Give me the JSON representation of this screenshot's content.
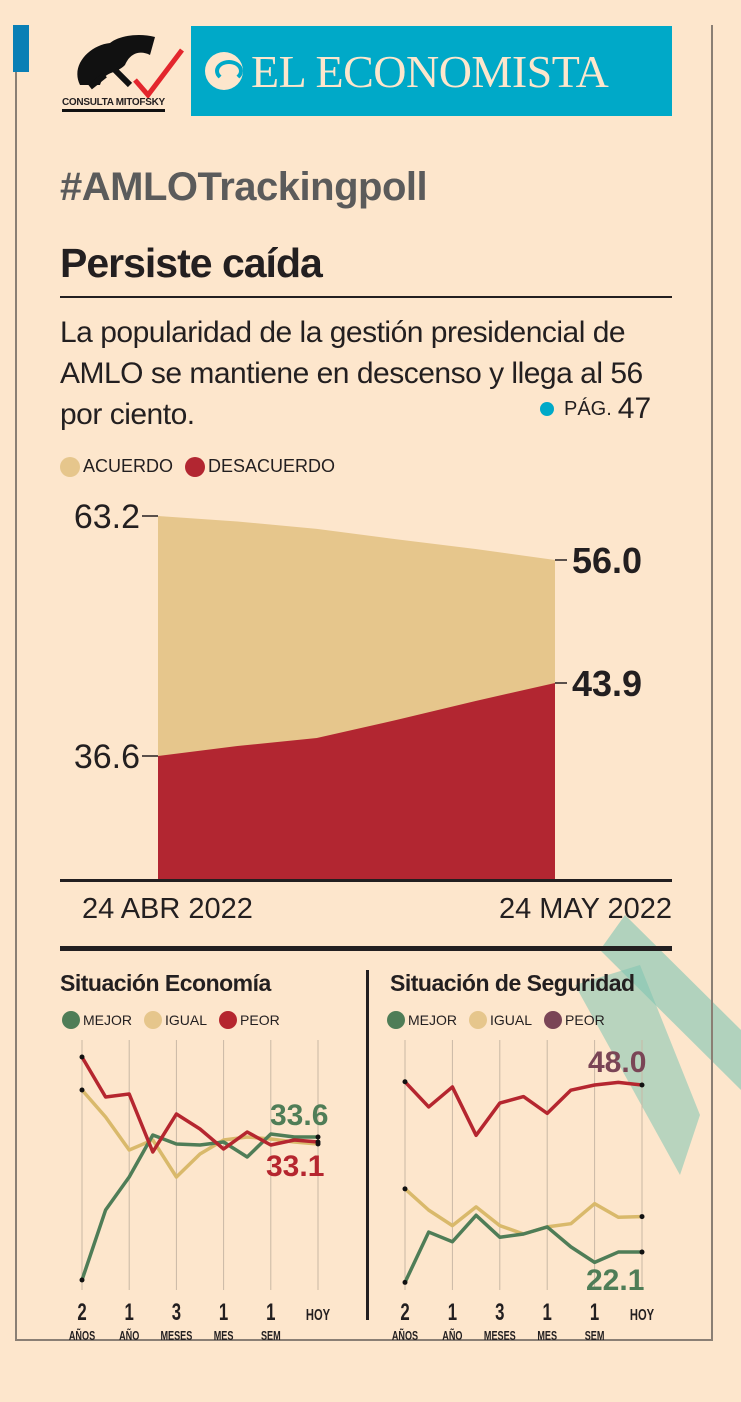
{
  "header": {
    "logo_left": "CONSULTA MITOFSKY",
    "brand": "EL ECONOMISTA",
    "hashtag": "#AMLOTrackingpoll",
    "title": "Persiste caída",
    "description": "La popularidad de la gestión presidencial de AMLO se mantiene en descenso y llega al 56 por ciento.",
    "page_ref_label": "PÁG.",
    "page_ref_num": "47"
  },
  "colors": {
    "acuerdo": "#e6c68c",
    "desacuerdo": "#b22631",
    "mejor": "#4f7d57",
    "igual": "#d9b96b",
    "peor": "#b5262f",
    "peor_seguridad": "#7a4556",
    "brand": "#00a9c8",
    "accent_stripe": "#7fc4b2"
  },
  "chart_data": [
    {
      "type": "area",
      "legend": [
        "ACUERDO",
        "DESACUERDO"
      ],
      "legend_placement": "top-left",
      "x_labels": [
        "24 ABR 2022",
        "24 MAY 2022"
      ],
      "series": [
        {
          "name": "ACUERDO",
          "values": [
            63.2,
            62.3,
            61.1,
            59.4,
            57.8,
            56.0
          ]
        },
        {
          "name": "DESACUERDO",
          "values": [
            36.6,
            37.6,
            38.4,
            40.2,
            42.1,
            43.9
          ]
        }
      ],
      "labels": {
        "start_acuerdo": "63.2",
        "start_desacuerdo": "36.6",
        "end_acuerdo": "56.0",
        "end_desacuerdo": "43.9"
      }
    },
    {
      "type": "line",
      "title": "Situación Economía",
      "legend": [
        "MEJOR",
        "IGUAL",
        "PEOR"
      ],
      "x_ticks": [
        {
          "n": "2",
          "u": "AÑOS"
        },
        {
          "n": "1",
          "u": "AÑO"
        },
        {
          "n": "3",
          "u": "MESES"
        },
        {
          "n": "1",
          "u": "MES"
        },
        {
          "n": "1",
          "u": "SEM"
        },
        {
          "n": "HOY",
          "u": ""
        }
      ],
      "series": [
        {
          "name": "MEJOR",
          "values": [
            19.3,
            26.3,
            29.6,
            33.8,
            32.9,
            32.8,
            33.1,
            31.6,
            33.9,
            33.6,
            33.6
          ]
        },
        {
          "name": "IGUAL",
          "values": [
            38.3,
            35.6,
            32.3,
            33.3,
            29.6,
            31.9,
            33.3,
            33.6,
            33.4,
            33.1,
            32.9
          ]
        },
        {
          "name": "PEOR",
          "values": [
            41.6,
            37.6,
            37.9,
            32.1,
            35.9,
            34.4,
            32.4,
            34.1,
            32.8,
            33.3,
            33.1
          ]
        }
      ],
      "end_labels": {
        "mejor": "33.6",
        "peor": "33.1"
      }
    },
    {
      "type": "line",
      "title": "Situación de Seguridad",
      "legend": [
        "MEJOR",
        "IGUAL",
        "PEOR"
      ],
      "x_ticks": [
        {
          "n": "2",
          "u": "AÑOS"
        },
        {
          "n": "1",
          "u": "AÑO"
        },
        {
          "n": "3",
          "u": "MESES"
        },
        {
          "n": "1",
          "u": "MES"
        },
        {
          "n": "1",
          "u": "SEM"
        },
        {
          "n": "HOY",
          "u": ""
        }
      ],
      "series": [
        {
          "name": "MEJOR",
          "values": [
            17.4,
            25.2,
            23.7,
            27.8,
            24.4,
            24.9,
            26.0,
            22.9,
            20.5,
            22.1,
            22.1
          ]
        },
        {
          "name": "IGUAL",
          "values": [
            31.9,
            28.6,
            26.2,
            29.1,
            26.2,
            24.9,
            26.0,
            26.5,
            29.6,
            27.5,
            27.6
          ]
        },
        {
          "name": "PEOR",
          "values": [
            48.5,
            44.6,
            47.7,
            40.2,
            45.2,
            46.2,
            43.6,
            47.2,
            48.0,
            48.4,
            48.0
          ]
        }
      ],
      "end_labels": {
        "peor": "48.0",
        "mejor": "22.1"
      }
    }
  ]
}
